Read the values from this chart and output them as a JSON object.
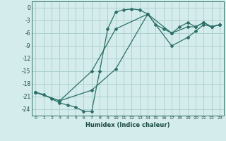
{
  "xlabel": "Humidex (Indice chaleur)",
  "bg_color": "#d4ecec",
  "grid_color": "#a8cccc",
  "line_color": "#2d7068",
  "xlim": [
    -0.5,
    23.5
  ],
  "ylim": [
    -25.5,
    1.5
  ],
  "xticks": [
    0,
    1,
    2,
    3,
    4,
    5,
    6,
    7,
    8,
    9,
    10,
    11,
    12,
    13,
    14,
    15,
    16,
    17,
    18,
    19,
    20,
    21,
    22,
    23
  ],
  "yticks": [
    0,
    -3,
    -6,
    -9,
    -12,
    -15,
    -18,
    -21,
    -24
  ],
  "series": [
    {
      "x": [
        0,
        1,
        2,
        3,
        4,
        5,
        6,
        7,
        8,
        9,
        10,
        11,
        12,
        13,
        14,
        15,
        16,
        17,
        18,
        19,
        20,
        21,
        22,
        23
      ],
      "y": [
        -20,
        -20.5,
        -21.5,
        -22.5,
        -23,
        -23.5,
        -24.5,
        -24.5,
        -15,
        -5,
        -1,
        -0.5,
        -0.3,
        -0.5,
        -1.5,
        -4,
        -5,
        -6,
        -4.5,
        -3.5,
        -4.5,
        -3.5,
        -4.5,
        -4
      ]
    },
    {
      "x": [
        0,
        3,
        7,
        10,
        14,
        17,
        19,
        20,
        21,
        22,
        23
      ],
      "y": [
        -20,
        -22,
        -19.5,
        -14.5,
        -1.5,
        -9,
        -7,
        -5.5,
        -4,
        -4.5,
        -4
      ]
    },
    {
      "x": [
        0,
        3,
        7,
        10,
        14,
        17,
        19,
        20,
        21,
        22,
        23
      ],
      "y": [
        -20,
        -22,
        -15,
        -5,
        -1.5,
        -6,
        -4.5,
        -4.5,
        -3.5,
        -4.5,
        -4
      ]
    }
  ]
}
